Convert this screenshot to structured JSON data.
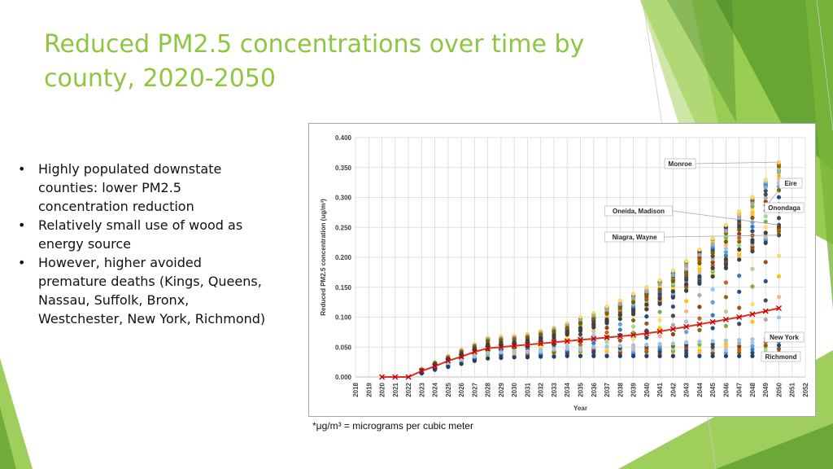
{
  "slide": {
    "title_lines": [
      "Reduced PM2.5 concentrations over time by",
      "county, 2020-2050"
    ],
    "bullets": [
      [
        "Highly populated downstate",
        "counties: lower PM2.5",
        "concentration reduction"
      ],
      [
        "Relatively small use of wood as",
        "energy source"
      ],
      [
        "However, higher avoided",
        "premature deaths (Kings, Queens,",
        "Nassau, Suffolk, Bronx,",
        "Westchester, New York, Richmond)"
      ]
    ],
    "footnote": "*μg/m³ = micrograms per cubic meter",
    "accent_color": "#8ec63f"
  },
  "chart_data": {
    "type": "scatter",
    "xlabel": "Year",
    "ylabel": "Reduced PM2.5 concentration (ug/m³)",
    "xlim": [
      2018,
      2052
    ],
    "ylim": [
      0,
      0.4
    ],
    "x_ticks": [
      2018,
      2019,
      2020,
      2021,
      2022,
      2023,
      2024,
      2025,
      2026,
      2027,
      2028,
      2029,
      2030,
      2031,
      2032,
      2033,
      2034,
      2035,
      2036,
      2037,
      2038,
      2039,
      2040,
      2041,
      2042,
      2043,
      2044,
      2045,
      2046,
      2047,
      2048,
      2049,
      2050,
      2051,
      2052
    ],
    "y_ticks": [
      "0.000",
      "0.050",
      "0.100",
      "0.150",
      "0.200",
      "0.250",
      "0.300",
      "0.350",
      "0.400"
    ],
    "grid": true,
    "marker_colors": [
      "#1f3f70",
      "#2e75b6",
      "#5b9bd5",
      "#9dc3e6",
      "#f4b183",
      "#ffc000",
      "#ffd966",
      "#70ad47",
      "#a9d18e",
      "#7f6000",
      "#c55a11",
      "#843c0c",
      "#a5a5a5",
      "#404040",
      "#264478",
      "#9e480e"
    ],
    "average_line_color": "#e0301e",
    "average": {
      "x": [
        2020,
        2021,
        2022,
        2023,
        2024,
        2025,
        2026,
        2027,
        2028,
        2029,
        2030,
        2031,
        2032,
        2033,
        2034,
        2035,
        2036,
        2037,
        2038,
        2039,
        2040,
        2041,
        2042,
        2043,
        2044,
        2045,
        2046,
        2047,
        2048,
        2049,
        2050
      ],
      "y": [
        0.0,
        0.0,
        0.0,
        0.01,
        0.018,
        0.027,
        0.034,
        0.042,
        0.048,
        0.05,
        0.052,
        0.054,
        0.056,
        0.058,
        0.06,
        0.062,
        0.064,
        0.066,
        0.068,
        0.07,
        0.073,
        0.076,
        0.08,
        0.084,
        0.088,
        0.092,
        0.096,
        0.1,
        0.105,
        0.11,
        0.115
      ]
    },
    "series": [
      {
        "name": "Monroe",
        "x": [
          2023,
          2024,
          2025,
          2026,
          2027,
          2028,
          2029,
          2030,
          2031,
          2032,
          2033,
          2034,
          2035,
          2036,
          2037,
          2038,
          2039,
          2040,
          2041,
          2042,
          2043,
          2044,
          2045,
          2046,
          2047,
          2048,
          2049,
          2050
        ],
        "y": [
          0.014,
          0.025,
          0.035,
          0.046,
          0.055,
          0.066,
          0.068,
          0.069,
          0.072,
          0.077,
          0.083,
          0.09,
          0.1,
          0.107,
          0.118,
          0.128,
          0.139,
          0.15,
          0.162,
          0.178,
          0.194,
          0.213,
          0.232,
          0.254,
          0.277,
          0.301,
          0.33,
          0.359
        ]
      },
      {
        "name": "Eire",
        "x": [
          2023,
          2024,
          2025,
          2026,
          2027,
          2028,
          2029,
          2030,
          2031,
          2032,
          2033,
          2034,
          2035,
          2036,
          2037,
          2038,
          2039,
          2040,
          2041,
          2042,
          2043,
          2044,
          2045,
          2046,
          2047,
          2048,
          2049,
          2050
        ],
        "y": [
          0.013,
          0.024,
          0.034,
          0.044,
          0.053,
          0.063,
          0.065,
          0.066,
          0.069,
          0.074,
          0.08,
          0.086,
          0.095,
          0.102,
          0.112,
          0.122,
          0.132,
          0.143,
          0.155,
          0.17,
          0.186,
          0.204,
          0.222,
          0.244,
          0.266,
          0.29,
          0.317,
          0.342
        ]
      },
      {
        "name": "Onondaga",
        "x": [
          2023,
          2024,
          2025,
          2026,
          2027,
          2028,
          2029,
          2030,
          2031,
          2032,
          2033,
          2034,
          2035,
          2036,
          2037,
          2038,
          2039,
          2040,
          2041,
          2042,
          2043,
          2044,
          2045,
          2046,
          2047,
          2048,
          2049,
          2050
        ],
        "y": [
          0.012,
          0.023,
          0.032,
          0.042,
          0.051,
          0.06,
          0.062,
          0.063,
          0.066,
          0.071,
          0.076,
          0.082,
          0.09,
          0.097,
          0.106,
          0.115,
          0.125,
          0.135,
          0.146,
          0.16,
          0.174,
          0.19,
          0.207,
          0.226,
          0.246,
          0.266,
          0.287,
          0.312
        ]
      },
      {
        "name": "Oneida, Madison",
        "x": [
          2023,
          2024,
          2025,
          2026,
          2027,
          2028,
          2029,
          2030,
          2031,
          2032,
          2033,
          2034,
          2035,
          2036,
          2037,
          2038,
          2039,
          2040,
          2041,
          2042,
          2043,
          2044,
          2045,
          2046,
          2047,
          2048,
          2049,
          2050
        ],
        "y": [
          0.011,
          0.021,
          0.03,
          0.039,
          0.047,
          0.055,
          0.057,
          0.058,
          0.061,
          0.065,
          0.07,
          0.075,
          0.082,
          0.088,
          0.096,
          0.104,
          0.112,
          0.121,
          0.131,
          0.143,
          0.155,
          0.168,
          0.182,
          0.197,
          0.213,
          0.229,
          0.241,
          0.254
        ]
      },
      {
        "name": "Niagra, Wayne",
        "x": [
          2023,
          2024,
          2025,
          2026,
          2027,
          2028,
          2029,
          2030,
          2031,
          2032,
          2033,
          2034,
          2035,
          2036,
          2037,
          2038,
          2039,
          2040,
          2041,
          2042,
          2043,
          2044,
          2045,
          2046,
          2047,
          2048,
          2049,
          2050
        ],
        "y": [
          0.01,
          0.02,
          0.029,
          0.037,
          0.045,
          0.052,
          0.054,
          0.055,
          0.058,
          0.062,
          0.066,
          0.071,
          0.077,
          0.083,
          0.09,
          0.097,
          0.105,
          0.113,
          0.122,
          0.133,
          0.144,
          0.156,
          0.168,
          0.182,
          0.196,
          0.21,
          0.224,
          0.237
        ]
      },
      {
        "name": "New York",
        "x": [
          2023,
          2024,
          2025,
          2026,
          2027,
          2028,
          2029,
          2030,
          2031,
          2032,
          2033,
          2034,
          2035,
          2036,
          2037,
          2038,
          2039,
          2040,
          2041,
          2042,
          2043,
          2044,
          2045,
          2046,
          2047,
          2048,
          2049,
          2050
        ],
        "y": [
          0.008,
          0.015,
          0.022,
          0.028,
          0.034,
          0.04,
          0.041,
          0.042,
          0.043,
          0.045,
          0.046,
          0.047,
          0.048,
          0.05,
          0.051,
          0.052,
          0.053,
          0.054,
          0.055,
          0.056,
          0.058,
          0.059,
          0.06,
          0.061,
          0.062,
          0.063,
          0.064,
          0.065
        ]
      },
      {
        "name": "Richmond",
        "x": [
          2023,
          2024,
          2025,
          2026,
          2027,
          2028,
          2029,
          2030,
          2031,
          2032,
          2033,
          2034,
          2035,
          2036,
          2037,
          2038,
          2039,
          2040,
          2041,
          2042,
          2043,
          2044,
          2045,
          2046,
          2047,
          2048,
          2049,
          2050
        ],
        "y": [
          0.006,
          0.012,
          0.017,
          0.022,
          0.027,
          0.031,
          0.032,
          0.033,
          0.033,
          0.034,
          0.034,
          0.035,
          0.035,
          0.035,
          0.035,
          0.035,
          0.035,
          0.035,
          0.035,
          0.035,
          0.035,
          0.035,
          0.035,
          0.035,
          0.035,
          0.035,
          0.035,
          0.035
        ]
      }
    ],
    "annotations": [
      {
        "text": "Monroe",
        "series": "Monroe"
      },
      {
        "text": "Eire",
        "series": "Eire"
      },
      {
        "text": "Onondaga",
        "series": "Onondaga"
      },
      {
        "text": "Oneida, Madison",
        "series": "Oneida, Madison"
      },
      {
        "text": "Niagra, Wayne",
        "series": "Niagra, Wayne"
      },
      {
        "text": "New York",
        "series": "New York"
      },
      {
        "text": "Richmond",
        "series": "Richmond"
      }
    ]
  }
}
